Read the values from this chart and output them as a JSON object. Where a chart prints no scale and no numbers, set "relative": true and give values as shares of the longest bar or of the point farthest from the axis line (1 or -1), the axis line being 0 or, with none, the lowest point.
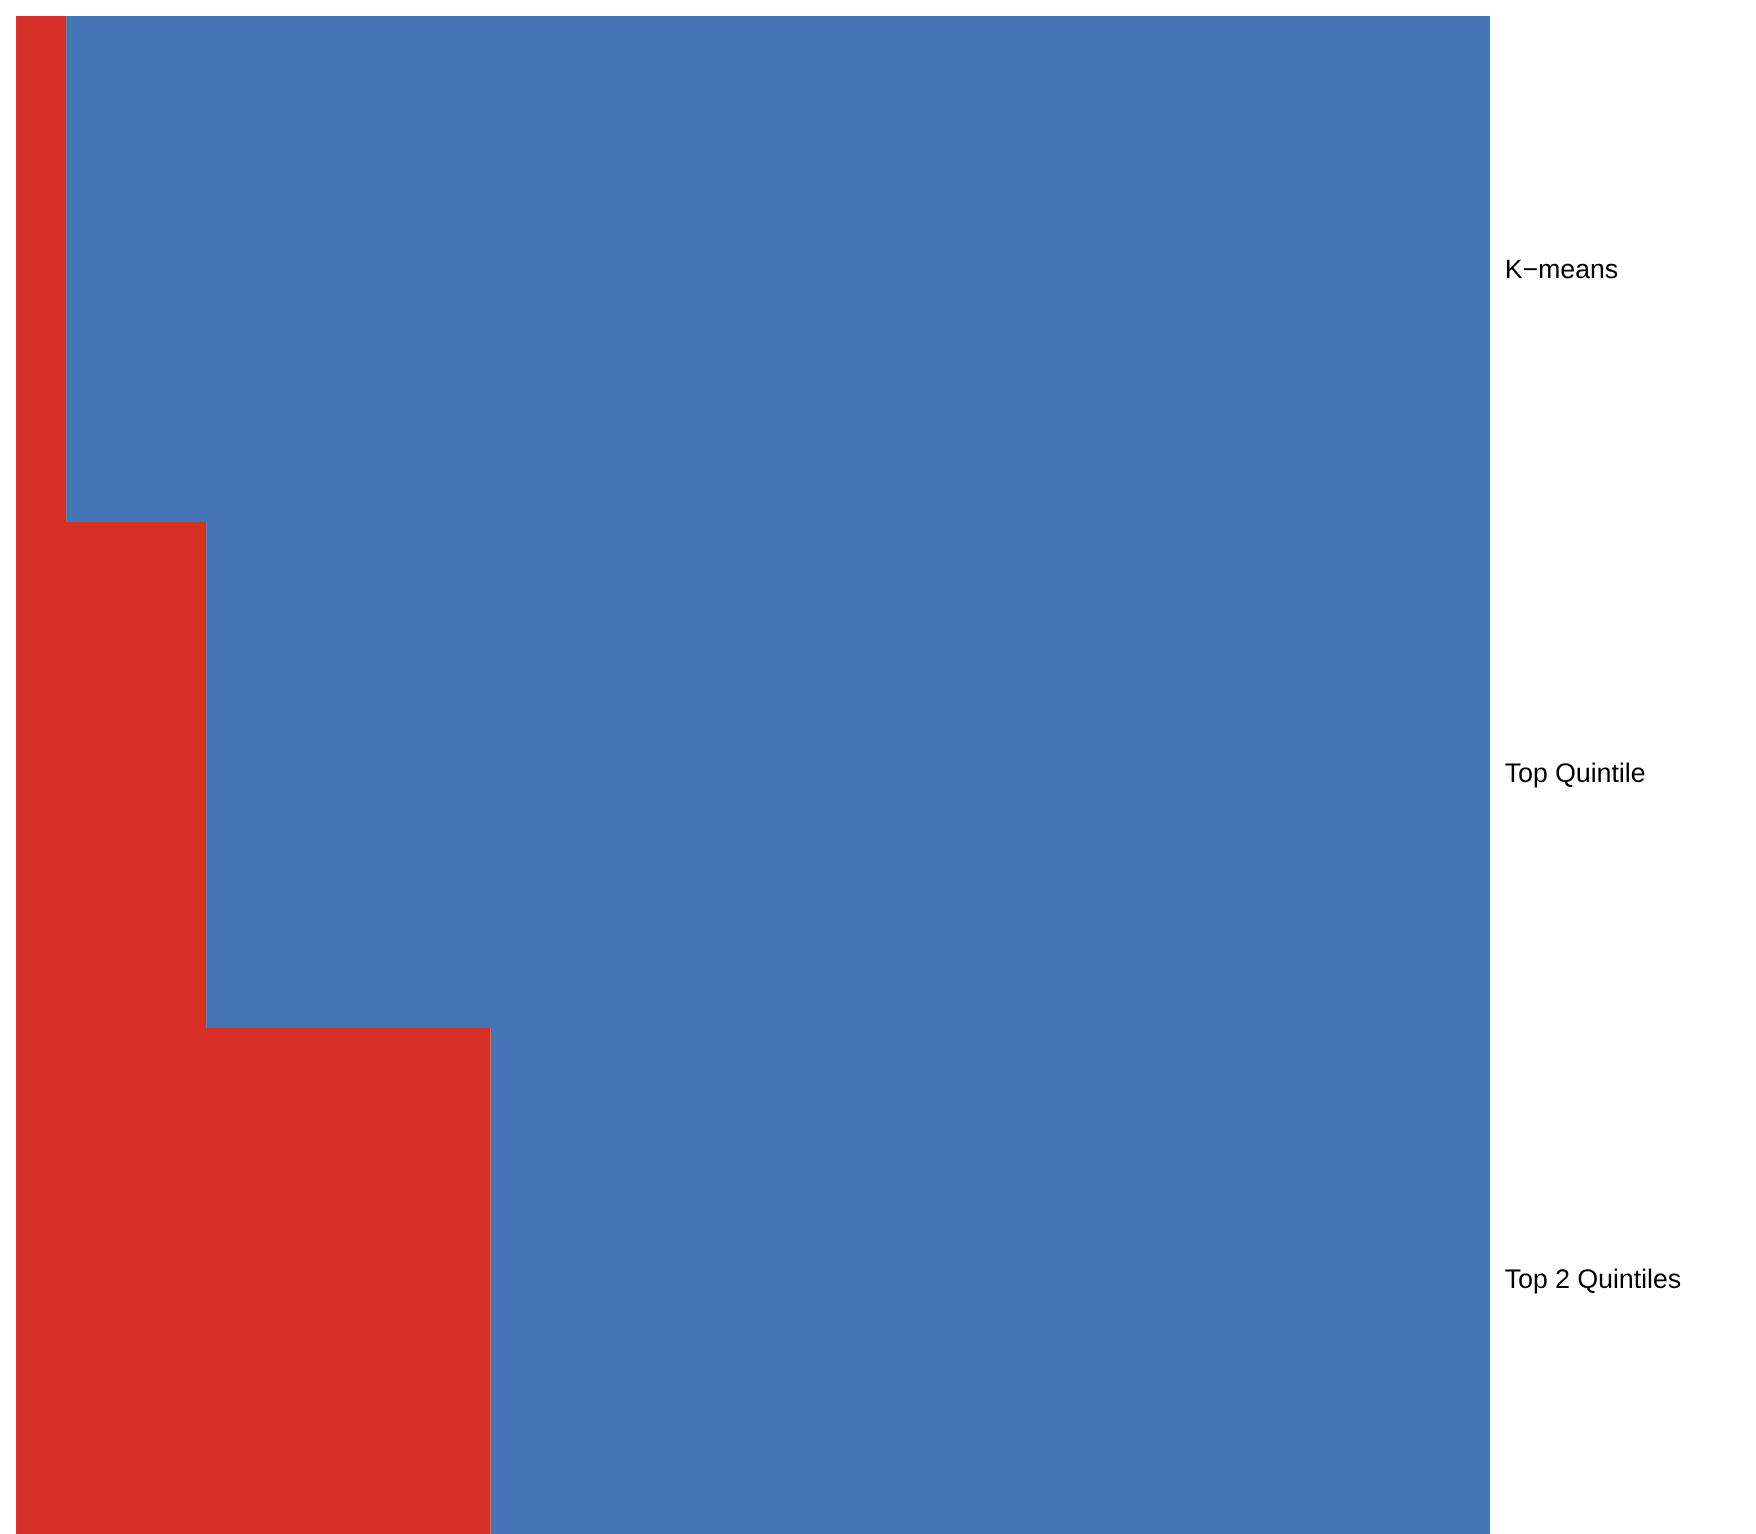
{
  "chart_data": {
    "type": "bar",
    "orientation": "horizontal",
    "stacked": true,
    "relative": true,
    "grid": false,
    "categories": [
      "K−means",
      "Top Quintile",
      "Top 2 Quintiles"
    ],
    "series": [
      {
        "color": "#d73027",
        "values": [
          0.034,
          0.129,
          0.322
        ]
      },
      {
        "color": "#4575b4",
        "values": [
          0.966,
          0.871,
          0.678
        ]
      }
    ]
  }
}
